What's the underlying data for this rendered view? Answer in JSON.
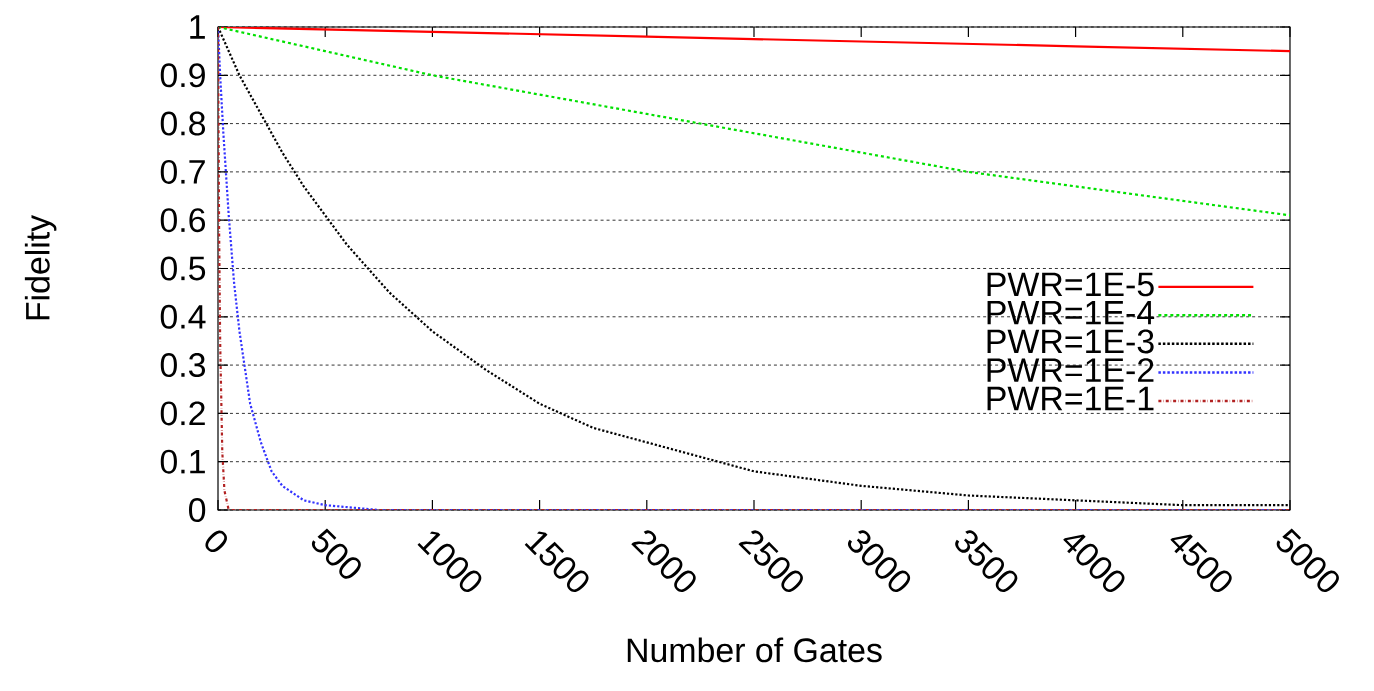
{
  "chart_data": {
    "type": "line",
    "xlabel": "Number of Gates",
    "ylabel": "Fidelity",
    "xlim": [
      0,
      5000
    ],
    "ylim": [
      0,
      1
    ],
    "xticks": [
      0,
      500,
      1000,
      1500,
      2000,
      2500,
      3000,
      3500,
      4000,
      4500,
      5000
    ],
    "yticks": [
      0,
      0.1,
      0.2,
      0.3,
      0.4,
      0.5,
      0.6,
      0.7,
      0.8,
      0.9,
      1
    ],
    "grid": "y",
    "legend": "bottom right",
    "series": [
      {
        "name": "PWR=1E-5",
        "color": "#ff0000",
        "line_style": "solid",
        "x": [
          0,
          1000,
          2000,
          3000,
          4000,
          5000
        ],
        "values": [
          1,
          0.99,
          0.98,
          0.97,
          0.96,
          0.95
        ]
      },
      {
        "name": "PWR=1E-4",
        "color": "#00e000",
        "line_style": "dashed",
        "x": [
          0,
          500,
          1000,
          1500,
          2000,
          2500,
          3000,
          3500,
          4000,
          4500,
          5000
        ],
        "values": [
          1,
          0.95,
          0.9,
          0.86,
          0.82,
          0.78,
          0.74,
          0.7,
          0.67,
          0.64,
          0.61
        ]
      },
      {
        "name": "PWR=1E-3",
        "color": "#000000",
        "line_style": "dotted",
        "x": [
          0,
          100,
          200,
          300,
          400,
          500,
          600,
          700,
          800,
          900,
          1000,
          1250,
          1500,
          1750,
          2000,
          2500,
          3000,
          3500,
          4000,
          4500,
          5000
        ],
        "values": [
          1,
          0.9,
          0.82,
          0.74,
          0.67,
          0.61,
          0.55,
          0.5,
          0.45,
          0.41,
          0.37,
          0.29,
          0.22,
          0.17,
          0.14,
          0.08,
          0.05,
          0.03,
          0.02,
          0.01,
          0.01
        ]
      },
      {
        "name": "PWR=1E-2",
        "color": "#3333ff",
        "line_style": "dotted",
        "x": [
          0,
          10,
          25,
          50,
          75,
          100,
          150,
          200,
          250,
          300,
          400,
          500,
          750,
          5000
        ],
        "values": [
          1,
          0.9,
          0.78,
          0.61,
          0.47,
          0.37,
          0.22,
          0.14,
          0.08,
          0.05,
          0.02,
          0.01,
          0,
          0
        ]
      },
      {
        "name": "PWR=1E-1",
        "color": "#b22222",
        "line_style": "dashdot",
        "x": [
          0,
          5,
          10,
          20,
          30,
          50,
          5000
        ],
        "values": [
          1,
          0.59,
          0.35,
          0.12,
          0.04,
          0,
          0
        ]
      }
    ]
  }
}
